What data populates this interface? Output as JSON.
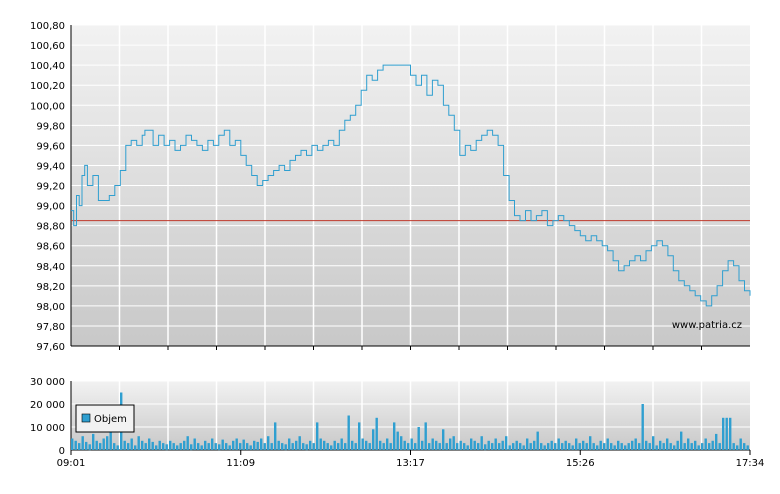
{
  "chart_data": [
    {
      "type": "line",
      "title": "",
      "xlabel": "",
      "ylabel": "",
      "ylim": [
        97.6,
        100.8
      ],
      "y_ticks": [
        "100,80",
        "100,60",
        "100,40",
        "100,20",
        "100,00",
        "99,80",
        "99,60",
        "99,40",
        "99,20",
        "99,00",
        "98,80",
        "98,60",
        "98,40",
        "98,20",
        "98,00",
        "97,80",
        "97,60"
      ],
      "reference_line": {
        "value": 98.85,
        "color": "#c0392b"
      },
      "watermark": "www.patria.cz",
      "line_color": "#2f9fd0",
      "grid": true,
      "series": [
        {
          "points": [
            [
              0,
              98.95
            ],
            [
              1,
              98.8
            ],
            [
              2,
              99.1
            ],
            [
              3,
              99.0
            ],
            [
              4,
              99.3
            ],
            [
              5,
              99.4
            ],
            [
              6,
              99.2
            ],
            [
              8,
              99.3
            ],
            [
              10,
              99.05
            ],
            [
              14,
              99.1
            ],
            [
              16,
              99.2
            ],
            [
              18,
              99.35
            ],
            [
              20,
              99.6
            ],
            [
              22,
              99.65
            ],
            [
              24,
              99.6
            ],
            [
              26,
              99.7
            ],
            [
              27,
              99.75
            ],
            [
              30,
              99.6
            ],
            [
              32,
              99.7
            ],
            [
              34,
              99.6
            ],
            [
              36,
              99.65
            ],
            [
              38,
              99.55
            ],
            [
              40,
              99.6
            ],
            [
              42,
              99.7
            ],
            [
              44,
              99.65
            ],
            [
              46,
              99.6
            ],
            [
              48,
              99.55
            ],
            [
              50,
              99.65
            ],
            [
              52,
              99.6
            ],
            [
              54,
              99.7
            ],
            [
              56,
              99.75
            ],
            [
              58,
              99.6
            ],
            [
              60,
              99.65
            ],
            [
              62,
              99.5
            ],
            [
              64,
              99.4
            ],
            [
              66,
              99.3
            ],
            [
              68,
              99.2
            ],
            [
              70,
              99.25
            ],
            [
              72,
              99.3
            ],
            [
              74,
              99.35
            ],
            [
              76,
              99.4
            ],
            [
              78,
              99.35
            ],
            [
              80,
              99.45
            ],
            [
              82,
              99.5
            ],
            [
              84,
              99.55
            ],
            [
              86,
              99.5
            ],
            [
              88,
              99.6
            ],
            [
              90,
              99.55
            ],
            [
              92,
              99.6
            ],
            [
              94,
              99.65
            ],
            [
              96,
              99.6
            ],
            [
              98,
              99.75
            ],
            [
              100,
              99.85
            ],
            [
              102,
              99.9
            ],
            [
              104,
              100.0
            ],
            [
              106,
              100.15
            ],
            [
              108,
              100.3
            ],
            [
              110,
              100.25
            ],
            [
              112,
              100.35
            ],
            [
              114,
              100.4
            ],
            [
              120,
              100.4
            ],
            [
              124,
              100.3
            ],
            [
              126,
              100.2
            ],
            [
              128,
              100.3
            ],
            [
              130,
              100.1
            ],
            [
              132,
              100.25
            ],
            [
              134,
              100.2
            ],
            [
              136,
              100.0
            ],
            [
              138,
              99.9
            ],
            [
              140,
              99.75
            ],
            [
              142,
              99.5
            ],
            [
              144,
              99.6
            ],
            [
              146,
              99.55
            ],
            [
              148,
              99.65
            ],
            [
              150,
              99.7
            ],
            [
              152,
              99.75
            ],
            [
              154,
              99.7
            ],
            [
              156,
              99.6
            ],
            [
              158,
              99.3
            ],
            [
              160,
              99.05
            ],
            [
              162,
              98.9
            ],
            [
              164,
              98.85
            ],
            [
              166,
              98.95
            ],
            [
              168,
              98.85
            ],
            [
              170,
              98.9
            ],
            [
              172,
              98.95
            ],
            [
              174,
              98.8
            ],
            [
              176,
              98.85
            ],
            [
              178,
              98.9
            ],
            [
              180,
              98.85
            ],
            [
              182,
              98.8
            ],
            [
              184,
              98.75
            ],
            [
              186,
              98.7
            ],
            [
              188,
              98.65
            ],
            [
              190,
              98.7
            ],
            [
              192,
              98.65
            ],
            [
              194,
              98.6
            ],
            [
              196,
              98.55
            ],
            [
              198,
              98.45
            ],
            [
              200,
              98.35
            ],
            [
              202,
              98.4
            ],
            [
              204,
              98.45
            ],
            [
              206,
              98.5
            ],
            [
              208,
              98.45
            ],
            [
              210,
              98.55
            ],
            [
              212,
              98.6
            ],
            [
              214,
              98.65
            ],
            [
              216,
              98.6
            ],
            [
              218,
              98.5
            ],
            [
              220,
              98.35
            ],
            [
              222,
              98.25
            ],
            [
              224,
              98.2
            ],
            [
              226,
              98.15
            ],
            [
              228,
              98.1
            ],
            [
              230,
              98.05
            ],
            [
              232,
              98.0
            ],
            [
              234,
              98.1
            ],
            [
              236,
              98.2
            ],
            [
              238,
              98.35
            ],
            [
              240,
              98.45
            ],
            [
              242,
              98.4
            ],
            [
              244,
              98.25
            ],
            [
              246,
              98.15
            ],
            [
              248,
              98.1
            ]
          ]
        }
      ]
    },
    {
      "type": "bar",
      "title": "",
      "xlabel": "",
      "ylabel": "",
      "ylim": [
        0,
        30000
      ],
      "y_ticks": [
        "30 000",
        "20 000",
        "10 000",
        "0"
      ],
      "x_ticks": [
        "09:01",
        "11:09",
        "13:17",
        "15:26",
        "17:34"
      ],
      "legend": {
        "label": "Objem",
        "placement": "left"
      },
      "bar_color": "#2f9fd0",
      "grid": true,
      "series": [
        {
          "values": [
            5000,
            4000,
            3000,
            6000,
            3500,
            2500,
            7000,
            4000,
            3000,
            5000,
            6000,
            9000,
            3000,
            2000,
            25000,
            4000,
            3000,
            5000,
            2000,
            6000,
            4000,
            3000,
            5000,
            3500,
            2000,
            4000,
            3000,
            2500,
            4000,
            3000,
            2000,
            3000,
            4000,
            6000,
            2500,
            5000,
            3000,
            2000,
            4000,
            3000,
            5000,
            3000,
            2500,
            4500,
            3000,
            2000,
            4000,
            5000,
            3000,
            4500,
            3000,
            2000,
            4000,
            3500,
            5000,
            3000,
            6000,
            3000,
            12000,
            4000,
            3000,
            2500,
            5000,
            3000,
            4000,
            6000,
            3000,
            2500,
            4000,
            3000,
            12000,
            5000,
            4000,
            3000,
            2000,
            4000,
            3000,
            5000,
            3000,
            15000,
            4000,
            3000,
            12000,
            5000,
            4000,
            3000,
            9000,
            14000,
            4000,
            3000,
            5000,
            3000,
            12000,
            8000,
            6000,
            4000,
            3000,
            5000,
            3000,
            10000,
            4000,
            12000,
            3000,
            5000,
            4000,
            3000,
            9000,
            3000,
            5000,
            6000,
            3000,
            4000,
            3000,
            2000,
            5000,
            4000,
            3000,
            6000,
            2500,
            4000,
            3000,
            5000,
            3000,
            4000,
            6000,
            2000,
            3000,
            4000,
            3000,
            2000,
            5000,
            3000,
            4000,
            8000,
            3000,
            2000,
            3000,
            4000,
            3000,
            5000,
            3000,
            4000,
            3000,
            2000,
            5000,
            3000,
            4000,
            3000,
            6000,
            3000,
            2000,
            4000,
            3000,
            5000,
            3000,
            2000,
            4000,
            3000,
            2000,
            3000,
            4000,
            5000,
            3000,
            20000,
            4000,
            3000,
            6000,
            2000,
            4000,
            3000,
            5000,
            3000,
            2000,
            4000,
            8000,
            3000,
            5000,
            3000,
            4000,
            2000,
            3000,
            5000,
            3000,
            4000,
            7000,
            3000,
            14000,
            14000,
            14000,
            3000,
            2000,
            5000,
            3000,
            2000
          ]
        }
      ]
    }
  ]
}
